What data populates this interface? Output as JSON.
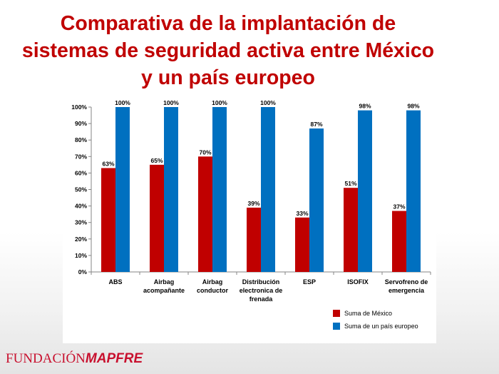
{
  "title_lines": [
    "Comparativa de la implantación de",
    "sistemas de seguridad activa entre México",
    "y un país europeo"
  ],
  "logo": {
    "part1": "FUNDACIÓN",
    "part2": "MAPFRE"
  },
  "colors": {
    "title": "#c00000",
    "mexico": "#c00000",
    "europe": "#0070c0",
    "logo": "#c8102e"
  },
  "chart_data": {
    "type": "bar",
    "categories": [
      [
        "ABS"
      ],
      [
        "Airbag",
        "acompañante"
      ],
      [
        "Airbag",
        "conductor"
      ],
      [
        "Distribución",
        "electronica de",
        "frenada"
      ],
      [
        "ESP"
      ],
      [
        "ISOFIX"
      ],
      [
        "Servofreno de",
        "emergencia"
      ]
    ],
    "series": [
      {
        "name": "Suma de México",
        "values": [
          63,
          65,
          70,
          39,
          33,
          51,
          37
        ],
        "labels": [
          "63%",
          "65%",
          "70%",
          "39%",
          "33%",
          "51%",
          "37%"
        ]
      },
      {
        "name": "Suma de un país europeo",
        "values": [
          100,
          100,
          100,
          100,
          87,
          98,
          98
        ],
        "labels": [
          "100%",
          "100%",
          "100%",
          "100%",
          "87%",
          "98%",
          "98%"
        ]
      }
    ],
    "yticks": [
      "0%",
      "10%",
      "20%",
      "30%",
      "40%",
      "50%",
      "60%",
      "70%",
      "80%",
      "90%",
      "100%"
    ],
    "ylim": [
      0,
      100
    ],
    "grid": false,
    "legend_position": "bottom-right"
  }
}
